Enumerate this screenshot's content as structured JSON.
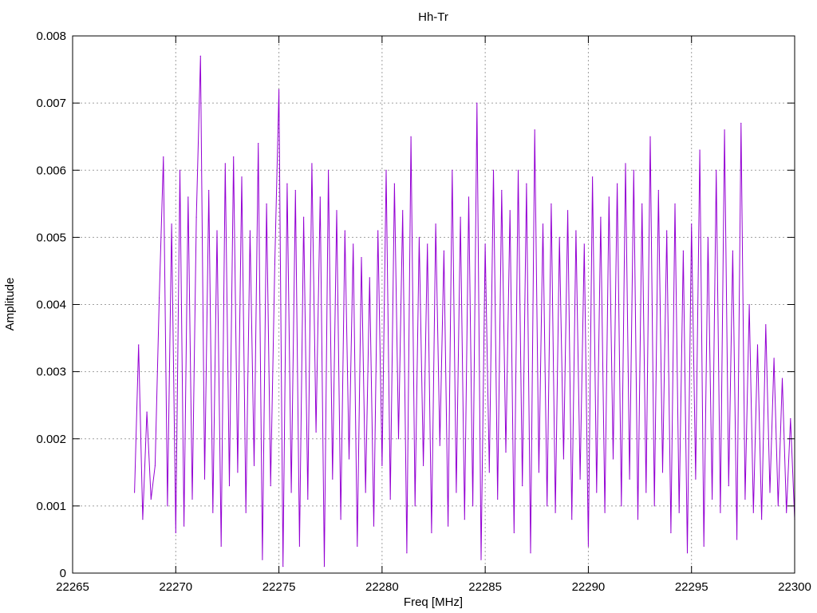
{
  "chart_data": {
    "type": "line",
    "title": "Hh-Tr",
    "xlabel": "Freq [MHz]",
    "ylabel": "Amplitude",
    "xlim": [
      22265,
      22300
    ],
    "ylim": [
      0,
      0.008
    ],
    "xticks": [
      "22265",
      "22270",
      "22275",
      "22280",
      "22285",
      "22290",
      "22295",
      "22300"
    ],
    "yticks": [
      "0",
      "0.001",
      "0.002",
      "0.003",
      "0.004",
      "0.005",
      "0.006",
      "0.007",
      "0.008"
    ],
    "grid": true,
    "legend": "none",
    "series_color": "#9400d3",
    "series": [
      {
        "name": "Hh-Tr",
        "x_start": 22268.0,
        "x_step": 0.2,
        "values": [
          0.0012,
          0.0034,
          0.0008,
          0.0024,
          0.0011,
          0.0016,
          0.0041,
          0.0062,
          0.001,
          0.0052,
          0.0006,
          0.006,
          0.0007,
          0.0056,
          0.0011,
          0.0053,
          0.0077,
          0.0014,
          0.0057,
          0.0009,
          0.0051,
          0.0004,
          0.0061,
          0.0013,
          0.0062,
          0.0015,
          0.0059,
          0.0009,
          0.0051,
          0.0016,
          0.0064,
          0.0002,
          0.0055,
          0.0013,
          0.0046,
          0.0072,
          0.0001,
          0.0058,
          0.0012,
          0.0057,
          0.0004,
          0.0053,
          0.0011,
          0.0061,
          0.0021,
          0.0056,
          0.0001,
          0.006,
          0.0014,
          0.0054,
          0.0008,
          0.0051,
          0.0017,
          0.0049,
          0.0004,
          0.0047,
          0.0012,
          0.0044,
          0.0007,
          0.0051,
          0.0016,
          0.006,
          0.0011,
          0.0058,
          0.002,
          0.0054,
          0.0003,
          0.0065,
          0.001,
          0.005,
          0.0016,
          0.0049,
          0.0006,
          0.0052,
          0.0019,
          0.0048,
          0.0007,
          0.006,
          0.0012,
          0.0053,
          0.0008,
          0.0056,
          0.001,
          0.007,
          0.0002,
          0.0049,
          0.0015,
          0.006,
          0.0011,
          0.0057,
          0.0018,
          0.0054,
          0.0006,
          0.006,
          0.0013,
          0.0058,
          0.0003,
          0.0066,
          0.0015,
          0.0052,
          0.001,
          0.0055,
          0.0009,
          0.005,
          0.0017,
          0.0054,
          0.0008,
          0.0051,
          0.0014,
          0.0049,
          0.0004,
          0.0059,
          0.0012,
          0.0053,
          0.0009,
          0.0056,
          0.0017,
          0.0058,
          0.001,
          0.0061,
          0.0014,
          0.006,
          0.0008,
          0.0055,
          0.0012,
          0.0065,
          0.001,
          0.0057,
          0.0015,
          0.0051,
          0.0006,
          0.0055,
          0.0009,
          0.0048,
          0.0003,
          0.0052,
          0.0014,
          0.0063,
          0.0004,
          0.005,
          0.0011,
          0.006,
          0.0009,
          0.0066,
          0.0013,
          0.0048,
          0.0005,
          0.0067,
          0.0011,
          0.004,
          0.0009,
          0.0034,
          0.0008,
          0.0037,
          0.0012,
          0.0032,
          0.001,
          0.0029,
          0.0009,
          0.0023,
          0.0008
        ]
      }
    ]
  }
}
